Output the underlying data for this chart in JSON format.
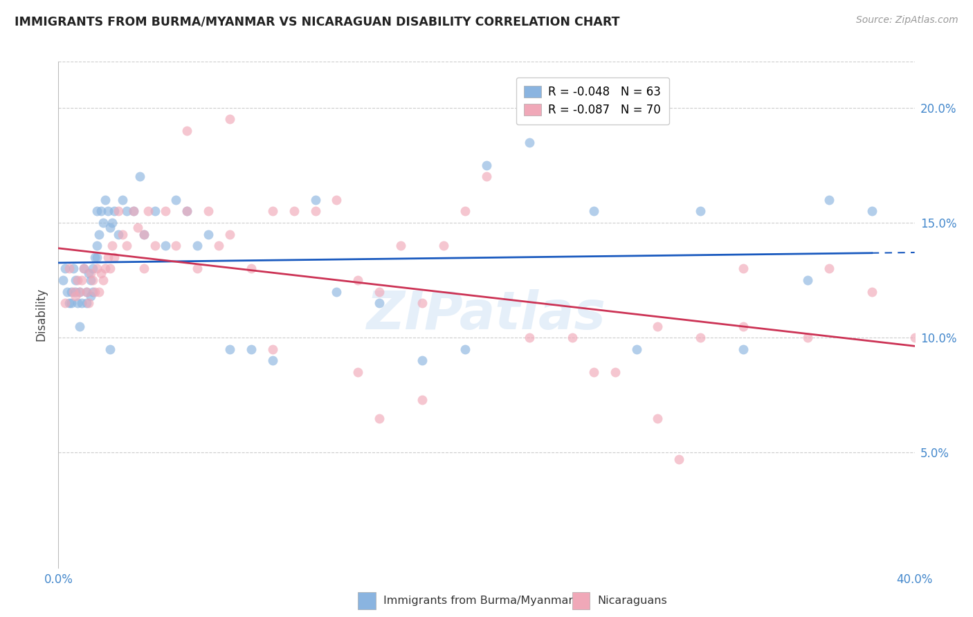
{
  "title": "IMMIGRANTS FROM BURMA/MYANMAR VS NICARAGUAN DISABILITY CORRELATION CHART",
  "source": "Source: ZipAtlas.com",
  "ylabel": "Disability",
  "right_yticks": [
    "20.0%",
    "15.0%",
    "10.0%",
    "5.0%"
  ],
  "right_ytick_vals": [
    0.2,
    0.15,
    0.1,
    0.05
  ],
  "xlim": [
    0.0,
    0.4
  ],
  "ylim": [
    0.0,
    0.22
  ],
  "legend1_label": "R = -0.048   N = 63",
  "legend2_label": "R = -0.087   N = 70",
  "legend1_color": "#8ab4e0",
  "legend2_color": "#f0a8b8",
  "trendline1_color": "#1a5abf",
  "trendline2_color": "#cc3355",
  "scatter1_color": "#8ab4e0",
  "scatter2_color": "#f0a8b8",
  "watermark": "ZIPatlas",
  "blue_scatter_x": [
    0.002,
    0.003,
    0.004,
    0.005,
    0.006,
    0.007,
    0.008,
    0.009,
    0.01,
    0.01,
    0.011,
    0.012,
    0.013,
    0.013,
    0.014,
    0.015,
    0.015,
    0.016,
    0.017,
    0.018,
    0.018,
    0.019,
    0.02,
    0.021,
    0.022,
    0.023,
    0.024,
    0.025,
    0.026,
    0.028,
    0.03,
    0.032,
    0.035,
    0.038,
    0.04,
    0.045,
    0.05,
    0.055,
    0.06,
    0.065,
    0.07,
    0.08,
    0.09,
    0.1,
    0.12,
    0.13,
    0.15,
    0.17,
    0.19,
    0.2,
    0.22,
    0.25,
    0.27,
    0.3,
    0.32,
    0.35,
    0.36,
    0.38,
    0.006,
    0.008,
    0.016,
    0.018,
    0.024
  ],
  "blue_scatter_y": [
    0.125,
    0.13,
    0.12,
    0.115,
    0.12,
    0.13,
    0.125,
    0.115,
    0.12,
    0.105,
    0.115,
    0.13,
    0.12,
    0.115,
    0.128,
    0.125,
    0.118,
    0.13,
    0.135,
    0.14,
    0.155,
    0.145,
    0.155,
    0.15,
    0.16,
    0.155,
    0.148,
    0.15,
    0.155,
    0.145,
    0.16,
    0.155,
    0.155,
    0.17,
    0.145,
    0.155,
    0.14,
    0.16,
    0.155,
    0.14,
    0.145,
    0.095,
    0.095,
    0.09,
    0.16,
    0.12,
    0.115,
    0.09,
    0.095,
    0.175,
    0.185,
    0.155,
    0.095,
    0.155,
    0.095,
    0.125,
    0.16,
    0.155,
    0.115,
    0.12,
    0.12,
    0.135,
    0.095
  ],
  "pink_scatter_x": [
    0.003,
    0.005,
    0.007,
    0.008,
    0.009,
    0.01,
    0.011,
    0.012,
    0.013,
    0.014,
    0.015,
    0.016,
    0.017,
    0.018,
    0.019,
    0.02,
    0.021,
    0.022,
    0.023,
    0.024,
    0.025,
    0.026,
    0.028,
    0.03,
    0.032,
    0.035,
    0.037,
    0.04,
    0.042,
    0.045,
    0.05,
    0.055,
    0.06,
    0.065,
    0.07,
    0.075,
    0.08,
    0.09,
    0.1,
    0.11,
    0.12,
    0.13,
    0.14,
    0.15,
    0.16,
    0.17,
    0.18,
    0.19,
    0.2,
    0.22,
    0.24,
    0.25,
    0.28,
    0.3,
    0.32,
    0.35,
    0.36,
    0.38,
    0.4,
    0.29,
    0.04,
    0.1,
    0.14,
    0.17,
    0.15,
    0.26,
    0.28,
    0.32,
    0.08,
    0.06
  ],
  "pink_scatter_y": [
    0.115,
    0.13,
    0.12,
    0.118,
    0.125,
    0.12,
    0.125,
    0.13,
    0.12,
    0.115,
    0.128,
    0.125,
    0.12,
    0.13,
    0.12,
    0.128,
    0.125,
    0.13,
    0.135,
    0.13,
    0.14,
    0.135,
    0.155,
    0.145,
    0.14,
    0.155,
    0.148,
    0.145,
    0.155,
    0.14,
    0.155,
    0.14,
    0.155,
    0.13,
    0.155,
    0.14,
    0.145,
    0.13,
    0.155,
    0.155,
    0.155,
    0.16,
    0.125,
    0.12,
    0.14,
    0.115,
    0.14,
    0.155,
    0.17,
    0.1,
    0.1,
    0.085,
    0.105,
    0.1,
    0.105,
    0.1,
    0.13,
    0.12,
    0.1,
    0.047,
    0.13,
    0.095,
    0.085,
    0.073,
    0.065,
    0.085,
    0.065,
    0.13,
    0.195,
    0.19
  ]
}
